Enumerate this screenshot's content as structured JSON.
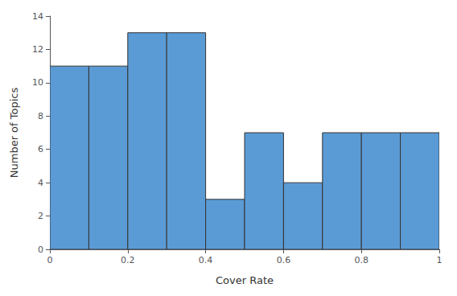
{
  "chart_data": {
    "type": "histogram",
    "bins": [
      0,
      0.1,
      0.2,
      0.3,
      0.4,
      0.5,
      0.6,
      0.7,
      0.8,
      0.9,
      1.0
    ],
    "values": [
      11,
      11,
      13,
      13,
      3,
      7,
      4,
      7,
      7,
      7
    ],
    "color": "#5b9bd5",
    "xlabel": "Cover Rate",
    "ylabel": "Number of Topics",
    "xlim": [
      0,
      1
    ],
    "ylim": [
      0,
      14
    ],
    "xticks": [
      0,
      0.2,
      0.4,
      0.6,
      0.8,
      1
    ],
    "yticks": [
      0,
      2,
      4,
      6,
      8,
      10,
      12,
      14
    ],
    "grid": false
  }
}
